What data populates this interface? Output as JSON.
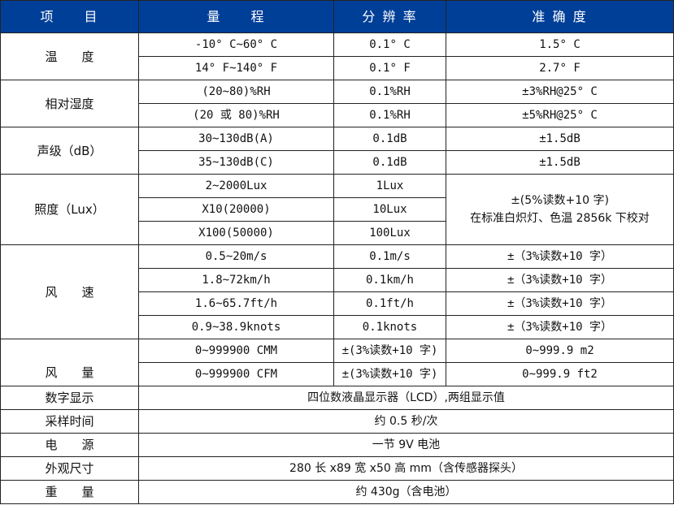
{
  "header": [
    "项　　目",
    "量　　程",
    "分 辨 率",
    "准 确 度"
  ],
  "colors": {
    "header_bg": "#003f98",
    "header_text": "#ffffff",
    "border": "#222222"
  },
  "sections": [
    {
      "label": "温　　度",
      "rows": [
        {
          "range": "-10° C~60° C",
          "resolution": "0.1° C",
          "accuracy": "1.5° C"
        },
        {
          "range": "14° F~140° F",
          "resolution": "0.1° F",
          "accuracy": "2.7° F"
        }
      ]
    },
    {
      "label": "相对湿度",
      "rows": [
        {
          "range": "(20~80)%RH",
          "resolution": "0.1%RH",
          "accuracy": "±3%RH@25° C"
        },
        {
          "range": "(20 或 80)%RH",
          "resolution": "0.1%RH",
          "accuracy": "±5%RH@25° C"
        }
      ]
    },
    {
      "label": "声级（dB）",
      "rows": [
        {
          "range": "30~130dB(A)",
          "resolution": "0.1dB",
          "accuracy": "±1.5dB"
        },
        {
          "range": "35~130dB(C)",
          "resolution": "0.1dB",
          "accuracy": "±1.5dB"
        }
      ]
    },
    {
      "label": "照度（Lux）",
      "accuracy_merged": [
        "±(5%读数+10 字)",
        "在标准白炽灯、色温 2856k 下校对"
      ],
      "rows": [
        {
          "range": "2~2000Lux",
          "resolution": "1Lux"
        },
        {
          "range": "X10(20000)",
          "resolution": "10Lux"
        },
        {
          "range": "X100(50000)",
          "resolution": "100Lux"
        }
      ]
    },
    {
      "label": "风　　速",
      "rows": [
        {
          "range": "0.5~20m/s",
          "resolution": "0.1m/s",
          "accuracy": "±（3%读数+10 字）"
        },
        {
          "range": "1.8~72km/h",
          "resolution": "0.1km/h",
          "accuracy": "±（3%读数+10 字）"
        },
        {
          "range": "1.6~65.7ft/h",
          "resolution": "0.1ft/h",
          "accuracy": "±（3%读数+10 字）"
        },
        {
          "range": "0.9~38.9knots",
          "resolution": "0.1knots",
          "accuracy": "±（3%读数+10 字）"
        }
      ]
    },
    {
      "label": "风　　量",
      "low": true,
      "rows": [
        {
          "range": "0~999900 CMM",
          "resolution": "±(3%读数+10 字)",
          "accuracy": "0~999.9 m2"
        },
        {
          "range": "0~999900 CFM",
          "resolution": "±(3%读数+10 字)",
          "accuracy": "0~999.9 ft2"
        }
      ]
    }
  ],
  "general": [
    {
      "label": "数字显示",
      "value": "四位数液晶显示器（LCD）,两组显示值"
    },
    {
      "label": "采样时间",
      "value": "约 0.5 秒/次"
    },
    {
      "label": "电　　源",
      "value": "一节 9V 电池"
    },
    {
      "label": "外观尺寸",
      "value": "280 长 x89 宽 x50 高 mm（含传感器探头）"
    },
    {
      "label": "重　　量",
      "value": "约 430g（含电池）"
    }
  ]
}
